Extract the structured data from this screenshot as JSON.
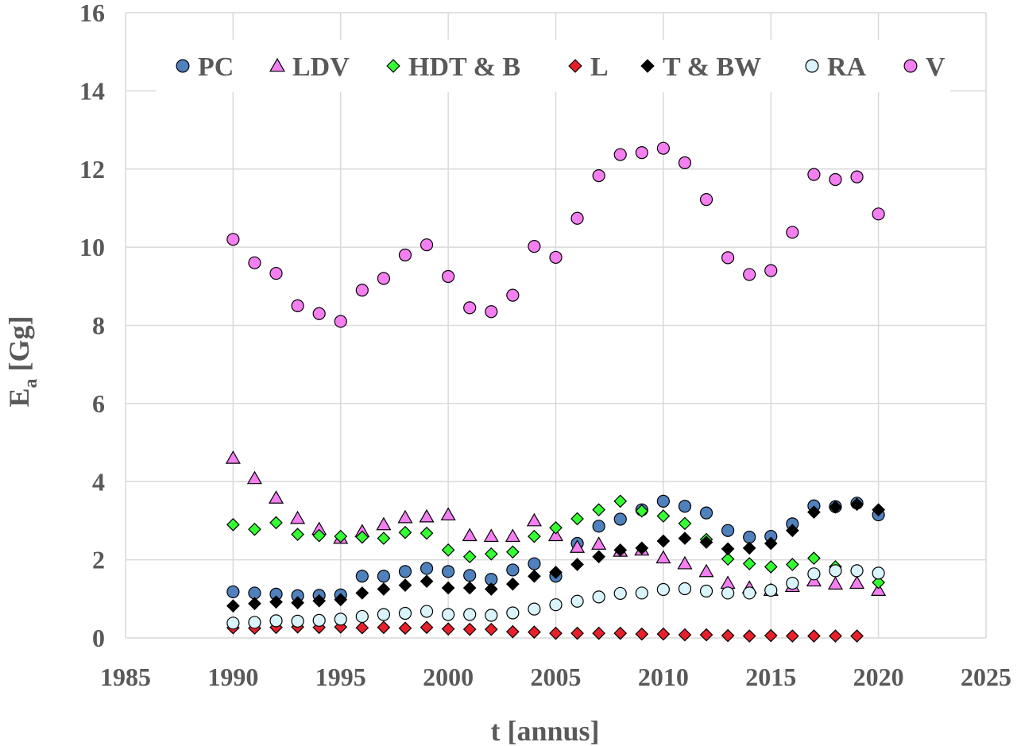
{
  "chart_data": {
    "type": "scatter",
    "title": "",
    "xlabel": "t [annus]",
    "ylabel_main": "E",
    "ylabel_sub": "a",
    "ylabel_rest": " [Gg]",
    "xlim": [
      1985,
      2025
    ],
    "ylim": [
      0,
      16
    ],
    "xticks": [
      1985,
      1990,
      1995,
      2000,
      2005,
      2010,
      2015,
      2020,
      2025
    ],
    "yticks": [
      0,
      2,
      4,
      6,
      8,
      10,
      12,
      14,
      16
    ],
    "grid": true,
    "legend_position": "top",
    "series": [
      {
        "name": "PC",
        "marker": "circle",
        "color": "#4f81bd",
        "x": [
          1990,
          1991,
          1992,
          1993,
          1994,
          1995,
          1996,
          1997,
          1998,
          1999,
          2000,
          2001,
          2002,
          2003,
          2004,
          2005,
          2006,
          2007,
          2008,
          2009,
          2010,
          2011,
          2012,
          2013,
          2014,
          2015,
          2016,
          2017,
          2018,
          2019,
          2020
        ],
        "y": [
          1.18,
          1.15,
          1.12,
          1.08,
          1.09,
          1.1,
          1.58,
          1.58,
          1.7,
          1.78,
          1.7,
          1.6,
          1.5,
          1.74,
          1.9,
          1.58,
          2.42,
          2.86,
          3.04,
          3.28,
          3.5,
          3.37,
          3.2,
          2.75,
          2.58,
          2.6,
          2.92,
          3.38,
          3.36,
          3.45,
          3.15
        ]
      },
      {
        "name": "LDV",
        "marker": "triangle",
        "color": "#f47ff0",
        "x": [
          1990,
          1991,
          1992,
          1993,
          1994,
          1995,
          1996,
          1997,
          1998,
          1999,
          2000,
          2001,
          2002,
          2003,
          2004,
          2005,
          2006,
          2007,
          2008,
          2009,
          2010,
          2011,
          2012,
          2013,
          2014,
          2015,
          2016,
          2017,
          2018,
          2019,
          2020
        ],
        "y": [
          4.6,
          4.08,
          3.58,
          3.06,
          2.78,
          2.55,
          2.72,
          2.9,
          3.08,
          3.1,
          3.15,
          2.62,
          2.6,
          2.6,
          3.0,
          2.62,
          2.32,
          2.4,
          2.22,
          2.25,
          2.05,
          1.9,
          1.7,
          1.4,
          1.28,
          1.22,
          1.32,
          1.46,
          1.38,
          1.4,
          1.22
        ]
      },
      {
        "name": "HDT & B",
        "marker": "diamond",
        "color": "#33ff33",
        "x": [
          1990,
          1991,
          1992,
          1993,
          1994,
          1995,
          1996,
          1997,
          1998,
          1999,
          2000,
          2001,
          2002,
          2003,
          2004,
          2005,
          2006,
          2007,
          2008,
          2009,
          2010,
          2011,
          2012,
          2013,
          2014,
          2015,
          2016,
          2017,
          2018,
          2019,
          2020
        ],
        "y": [
          2.9,
          2.78,
          2.95,
          2.65,
          2.62,
          2.6,
          2.58,
          2.55,
          2.7,
          2.68,
          2.25,
          2.08,
          2.15,
          2.2,
          2.6,
          2.82,
          3.05,
          3.28,
          3.5,
          3.25,
          3.12,
          2.93,
          2.52,
          2.02,
          1.9,
          1.82,
          1.88,
          2.04,
          1.82,
          1.72,
          1.42
        ]
      },
      {
        "name": "L",
        "marker": "diamond",
        "color": "#e8202a",
        "x": [
          1990,
          1991,
          1992,
          1993,
          1994,
          1995,
          1996,
          1997,
          1998,
          1999,
          2000,
          2001,
          2002,
          2003,
          2004,
          2005,
          2006,
          2007,
          2008,
          2009,
          2010,
          2011,
          2012,
          2013,
          2014,
          2015,
          2016,
          2017,
          2018,
          2019
        ],
        "y": [
          0.26,
          0.25,
          0.27,
          0.28,
          0.27,
          0.28,
          0.26,
          0.27,
          0.25,
          0.27,
          0.23,
          0.22,
          0.22,
          0.16,
          0.15,
          0.12,
          0.12,
          0.12,
          0.12,
          0.1,
          0.1,
          0.08,
          0.08,
          0.06,
          0.05,
          0.06,
          0.05,
          0.05,
          0.05,
          0.05
        ]
      },
      {
        "name": "T & BW",
        "marker": "diamond",
        "color": "#000000",
        "x": [
          1990,
          1991,
          1992,
          1993,
          1994,
          1995,
          1996,
          1997,
          1998,
          1999,
          2000,
          2001,
          2002,
          2003,
          2004,
          2005,
          2006,
          2007,
          2008,
          2009,
          2010,
          2011,
          2012,
          2013,
          2014,
          2015,
          2016,
          2017,
          2018,
          2019,
          2020
        ],
        "y": [
          0.82,
          0.88,
          0.92,
          0.9,
          0.95,
          0.98,
          1.15,
          1.25,
          1.35,
          1.45,
          1.28,
          1.28,
          1.25,
          1.38,
          1.58,
          1.68,
          1.88,
          2.08,
          2.25,
          2.3,
          2.48,
          2.55,
          2.45,
          2.28,
          2.3,
          2.42,
          2.75,
          3.22,
          3.35,
          3.42,
          3.28
        ]
      },
      {
        "name": "RA",
        "marker": "circle",
        "color": "#d9f4fa",
        "x": [
          1990,
          1991,
          1992,
          1993,
          1994,
          1995,
          1996,
          1997,
          1998,
          1999,
          2000,
          2001,
          2002,
          2003,
          2004,
          2005,
          2006,
          2007,
          2008,
          2009,
          2010,
          2011,
          2012,
          2013,
          2014,
          2015,
          2016,
          2017,
          2018,
          2019,
          2020
        ],
        "y": [
          0.38,
          0.4,
          0.44,
          0.43,
          0.45,
          0.48,
          0.55,
          0.6,
          0.63,
          0.68,
          0.6,
          0.6,
          0.58,
          0.64,
          0.74,
          0.85,
          0.94,
          1.05,
          1.14,
          1.15,
          1.24,
          1.26,
          1.2,
          1.15,
          1.15,
          1.22,
          1.4,
          1.64,
          1.72,
          1.72,
          1.66
        ]
      },
      {
        "name": "V",
        "marker": "circle",
        "color": "#f47ff0",
        "x": [
          1990,
          1991,
          1992,
          1993,
          1994,
          1995,
          1996,
          1997,
          1998,
          1999,
          2000,
          2001,
          2002,
          2003,
          2004,
          2005,
          2006,
          2007,
          2008,
          2009,
          2010,
          2011,
          2012,
          2013,
          2014,
          2015,
          2016,
          2017,
          2018,
          2019,
          2020
        ],
        "y": [
          10.2,
          9.6,
          9.33,
          8.5,
          8.3,
          8.1,
          8.9,
          9.2,
          9.8,
          10.06,
          9.25,
          8.45,
          8.35,
          8.77,
          10.02,
          9.74,
          10.74,
          11.83,
          12.37,
          12.42,
          12.53,
          12.16,
          11.22,
          9.73,
          9.3,
          9.4,
          10.38,
          11.86,
          11.73,
          11.8,
          10.85
        ]
      }
    ]
  }
}
